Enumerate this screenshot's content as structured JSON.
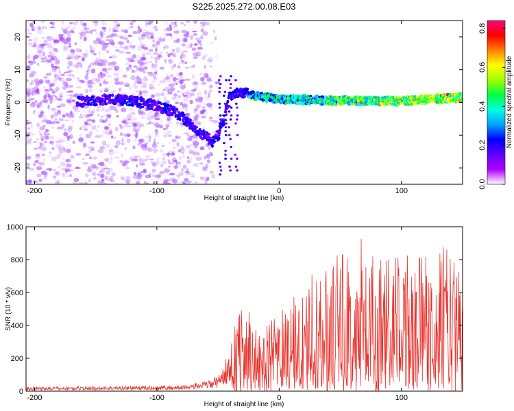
{
  "title": "S225.2025.272.00.08.E03",
  "chart_data": [
    {
      "type": "heatmap",
      "name": "spectrogram",
      "xlabel": "Height of straight line (km)",
      "ylabel": "Frequency (Hz)",
      "xlim": [
        -207,
        150
      ],
      "ylim": [
        -25,
        25
      ],
      "xticks": [
        -200,
        -100,
        0,
        100
      ],
      "yticks": [
        -20,
        -10,
        0,
        10,
        20
      ],
      "colorbar": {
        "label": "Normalized spectral amplitude",
        "range": [
          0.0,
          0.84
        ],
        "ticks": [
          "0.0",
          "0.2",
          "0.4",
          "0.6",
          "0.8"
        ],
        "colors": [
          "#ffffff",
          "#b000ff",
          "#6000ff",
          "#0000ff",
          "#00a0ff",
          "#00ffe0",
          "#00ff40",
          "#a0ff00",
          "#ffff00",
          "#ff8000",
          "#ff0000",
          "#ff0080"
        ]
      },
      "trace": {
        "description": "signal ridge frequency vs height",
        "x": [
          -165,
          -140,
          -120,
          -100,
          -85,
          -75,
          -65,
          -55,
          -50,
          -45,
          -40,
          -30,
          -20,
          0,
          50,
          100,
          150
        ],
        "y": [
          0,
          1,
          0.5,
          -1,
          -3,
          -6,
          -9,
          -12,
          -10,
          -5,
          2,
          3,
          2,
          1,
          0.5,
          0.5,
          1.5
        ]
      }
    },
    {
      "type": "line",
      "name": "snr",
      "xlabel": "Height of straight line (km)",
      "ylabel": "SNR (10 * v/v)",
      "xlim": [
        -207,
        150
      ],
      "ylim": [
        0,
        1000
      ],
      "xticks": [
        -200,
        -100,
        0,
        100
      ],
      "yticks": [
        0,
        200,
        400,
        600,
        800,
        1000
      ],
      "color": "#e8302a",
      "envelope": {
        "x": [
          -207,
          -80,
          -60,
          -50,
          -40,
          -35,
          -30,
          -20,
          -10,
          0,
          10,
          20,
          30,
          40,
          50,
          60,
          80,
          100,
          120,
          140,
          150
        ],
        "y": [
          25,
          35,
          60,
          90,
          250,
          480,
          550,
          380,
          420,
          450,
          550,
          600,
          700,
          750,
          850,
          780,
          880,
          820,
          850,
          900,
          700
        ]
      }
    }
  ]
}
